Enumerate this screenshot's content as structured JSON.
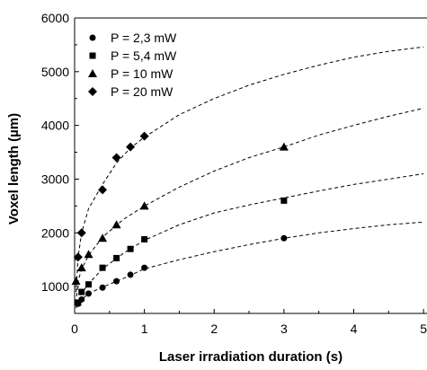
{
  "chart_data": {
    "type": "scatter",
    "xlabel": "Laser irradiation duration (s)",
    "ylabel": "Voxel length (µm)",
    "xlim": [
      0,
      5
    ],
    "ylim": [
      500,
      6000
    ],
    "x_ticks": [
      0,
      1,
      2,
      3,
      4,
      5
    ],
    "y_ticks": [
      1000,
      2000,
      3000,
      4000,
      5000,
      6000
    ],
    "x_tick_labels": [
      "0",
      "1",
      "2",
      "3",
      "4",
      "5"
    ],
    "y_tick_labels": [
      "1000",
      "2000",
      "3000",
      "4000",
      "5000",
      "6000"
    ],
    "legend_position": "top-left",
    "grid": false,
    "colors": {
      "marker": "#000000",
      "fit_line": "#000000",
      "axis": "#000000"
    },
    "series": [
      {
        "name": "P = 2,3 mW",
        "marker": "circle",
        "x": [
          0.05,
          0.1,
          0.2,
          0.4,
          0.6,
          0.8,
          1.0,
          3.0
        ],
        "y": [
          680,
          760,
          870,
          980,
          1100,
          1220,
          1350,
          1900
        ],
        "fit": [
          [
            0.02,
            600
          ],
          [
            0.05,
            680
          ],
          [
            0.1,
            760
          ],
          [
            0.2,
            870
          ],
          [
            0.4,
            990
          ],
          [
            0.7,
            1150
          ],
          [
            1.0,
            1330
          ],
          [
            1.5,
            1500
          ],
          [
            2.0,
            1650
          ],
          [
            2.5,
            1780
          ],
          [
            3.0,
            1900
          ],
          [
            3.5,
            2000
          ],
          [
            4.0,
            2080
          ],
          [
            4.5,
            2150
          ],
          [
            5.0,
            2200
          ]
        ]
      },
      {
        "name": "P = 5,4 mW",
        "marker": "square",
        "x": [
          0.05,
          0.1,
          0.2,
          0.4,
          0.6,
          0.8,
          1.0,
          3.0
        ],
        "y": [
          700,
          900,
          1040,
          1350,
          1530,
          1700,
          1880,
          2600
        ],
        "fit": [
          [
            0.02,
            620
          ],
          [
            0.05,
            720
          ],
          [
            0.1,
            880
          ],
          [
            0.2,
            1050
          ],
          [
            0.4,
            1330
          ],
          [
            0.7,
            1620
          ],
          [
            1.0,
            1860
          ],
          [
            1.5,
            2150
          ],
          [
            2.0,
            2370
          ],
          [
            2.5,
            2520
          ],
          [
            3.0,
            2650
          ],
          [
            3.5,
            2780
          ],
          [
            4.0,
            2900
          ],
          [
            4.5,
            3000
          ],
          [
            5.0,
            3100
          ]
        ]
      },
      {
        "name": "P = 10 mW",
        "marker": "triangle",
        "x": [
          0.02,
          0.1,
          0.2,
          0.4,
          0.6,
          1.0,
          3.0
        ],
        "y": [
          1100,
          1350,
          1600,
          1900,
          2150,
          2500,
          3600
        ],
        "fit": [
          [
            0.02,
            700
          ],
          [
            0.05,
            1100
          ],
          [
            0.1,
            1330
          ],
          [
            0.2,
            1580
          ],
          [
            0.4,
            1920
          ],
          [
            0.7,
            2250
          ],
          [
            1.0,
            2500
          ],
          [
            1.5,
            2850
          ],
          [
            2.0,
            3150
          ],
          [
            2.5,
            3400
          ],
          [
            3.0,
            3600
          ],
          [
            3.5,
            3820
          ],
          [
            4.0,
            4000
          ],
          [
            4.5,
            4170
          ],
          [
            5.0,
            4320
          ]
        ]
      },
      {
        "name": "P = 20 mW",
        "marker": "diamond",
        "x": [
          0.05,
          0.1,
          0.4,
          0.6,
          0.8,
          1.0
        ],
        "y": [
          1550,
          2000,
          2800,
          3400,
          3600,
          3800
        ],
        "fit": [
          [
            0.02,
            900
          ],
          [
            0.05,
            1550
          ],
          [
            0.1,
            2000
          ],
          [
            0.2,
            2450
          ],
          [
            0.4,
            2900
          ],
          [
            0.6,
            3300
          ],
          [
            0.8,
            3580
          ],
          [
            1.0,
            3780
          ],
          [
            1.5,
            4200
          ],
          [
            2.0,
            4500
          ],
          [
            2.5,
            4750
          ],
          [
            3.0,
            4950
          ],
          [
            3.5,
            5120
          ],
          [
            4.0,
            5270
          ],
          [
            4.5,
            5380
          ],
          [
            5.0,
            5460
          ]
        ]
      }
    ]
  }
}
